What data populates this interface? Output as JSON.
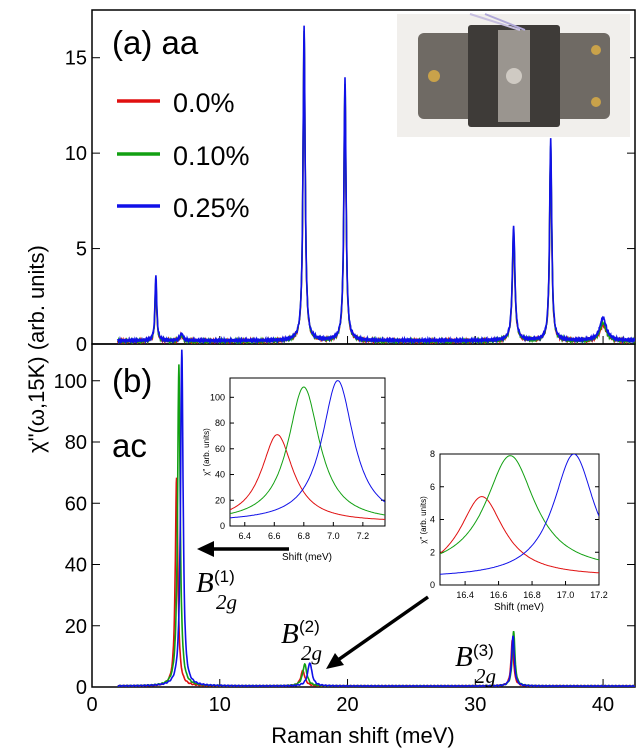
{
  "figure": {
    "ylabel": "χ\"(ω,15K) (arb. units)",
    "xlabel": "Raman shift (meV)",
    "panel_a_label": "(a) aa",
    "panel_b_label": "(b)",
    "panel_b_sublabel": "ac",
    "legend": [
      "0.0%",
      "0.10%",
      "0.25%"
    ],
    "colors": {
      "red": "#e01010",
      "green": "#12a012",
      "blue": "#1010e8"
    },
    "inset_photo_icon": "strain-cell-photo-icon",
    "mode_labels": [
      "B_2g^(1)",
      "B_2g^(2)",
      "B_2g^(3)"
    ],
    "inset1_xlabel": "Shift (meV)",
    "inset1_ylabel": "χ\" (arb. units)",
    "inset2_xlabel": "Shift (meV)",
    "inset2_ylabel": "χ\" (arb. units)"
  },
  "chart_data": [
    {
      "type": "line",
      "panel": "(a) aa",
      "xlim": [
        0,
        42.5
      ],
      "ylim": [
        0,
        17.5
      ],
      "xticks": [
        0,
        10,
        20,
        30,
        40
      ],
      "yticks": [
        0,
        5,
        10,
        15
      ],
      "legend_placement": "top-left",
      "series": [
        {
          "name": "0.0%",
          "color": "#e01010",
          "baseline": 0.15,
          "peaks": [
            [
              5.0,
              3.0,
              0.08
            ],
            [
              7.0,
              0.3,
              0.15
            ],
            [
              16.6,
              15.8,
              0.1
            ],
            [
              19.8,
              13.0,
              0.1
            ],
            [
              33.0,
              5.5,
              0.12
            ],
            [
              35.9,
              9.8,
              0.1
            ],
            [
              40.0,
              0.85,
              0.3
            ]
          ]
        },
        {
          "name": "0.10%",
          "color": "#12a012",
          "baseline": 0.15,
          "peaks": [
            [
              5.0,
              3.2,
              0.08
            ],
            [
              7.0,
              0.3,
              0.15
            ],
            [
              16.6,
              16.3,
              0.1
            ],
            [
              19.8,
              13.5,
              0.1
            ],
            [
              33.0,
              5.8,
              0.12
            ],
            [
              35.9,
              10.2,
              0.1
            ],
            [
              40.0,
              0.95,
              0.3
            ]
          ]
        },
        {
          "name": "0.25%",
          "color": "#1010e8",
          "baseline": 0.18,
          "peaks": [
            [
              5.0,
              3.5,
              0.08
            ],
            [
              7.0,
              0.35,
              0.15
            ],
            [
              16.6,
              16.5,
              0.1
            ],
            [
              19.8,
              13.8,
              0.1
            ],
            [
              33.0,
              6.0,
              0.12
            ],
            [
              35.9,
              10.6,
              0.1
            ],
            [
              40.0,
              1.2,
              0.3
            ]
          ]
        }
      ]
    },
    {
      "type": "line",
      "panel": "(b) ac",
      "xlim": [
        0,
        42.5
      ],
      "ylim": [
        0,
        112
      ],
      "xticks": [
        0,
        10,
        20,
        30,
        40
      ],
      "yticks": [
        0,
        20,
        40,
        60,
        80,
        100
      ],
      "series": [
        {
          "name": "0.0%",
          "color": "#e01010",
          "peaks": [
            [
              6.62,
              68,
              0.12
            ],
            [
              16.5,
              5.0,
              0.2
            ],
            [
              32.9,
              15,
              0.12
            ]
          ]
        },
        {
          "name": "0.10%",
          "color": "#12a012",
          "peaks": [
            [
              6.8,
              105,
              0.12
            ],
            [
              16.65,
              7.1,
              0.2
            ],
            [
              33.0,
              18,
              0.12
            ]
          ]
        },
        {
          "name": "0.25%",
          "color": "#1010e8",
          "peaks": [
            [
              7.03,
              110,
              0.12
            ],
            [
              17.05,
              7.6,
              0.2
            ],
            [
              32.95,
              16.5,
              0.12
            ]
          ]
        }
      ]
    },
    {
      "type": "line",
      "panel": "inset B2g(1)",
      "xlim": [
        6.3,
        7.35
      ],
      "ylim": [
        0,
        115
      ],
      "xticks": [
        6.4,
        6.6,
        6.8,
        7.0,
        7.2
      ],
      "yticks": [
        0,
        20,
        40,
        60,
        80,
        100
      ],
      "series": [
        {
          "name": "0.0%",
          "color": "#e01010",
          "peak": [
            6.62,
            68,
            0.13
          ],
          "base": 3
        },
        {
          "name": "0.10%",
          "color": "#12a012",
          "peak": [
            6.8,
            105,
            0.13
          ],
          "base": 3
        },
        {
          "name": "0.25%",
          "color": "#1010e8",
          "peak": [
            7.03,
            110,
            0.13
          ],
          "base": 3
        }
      ]
    },
    {
      "type": "line",
      "panel": "inset B2g(2)",
      "xlim": [
        16.25,
        17.2
      ],
      "ylim": [
        0,
        8
      ],
      "xticks": [
        16.4,
        16.6,
        16.8,
        17.0,
        17.2
      ],
      "yticks": [
        0,
        2,
        4,
        6,
        8
      ],
      "series": [
        {
          "name": "0.0%",
          "color": "#e01010",
          "peak": [
            16.5,
            4.9,
            0.16
          ],
          "base": 0.5
        },
        {
          "name": "0.10%",
          "color": "#12a012",
          "peak": [
            16.67,
            7.1,
            0.18
          ],
          "base": 0.8
        },
        {
          "name": "0.25%",
          "color": "#1010e8",
          "peak": [
            17.05,
            7.6,
            0.15
          ],
          "base": 0.4
        }
      ]
    }
  ]
}
